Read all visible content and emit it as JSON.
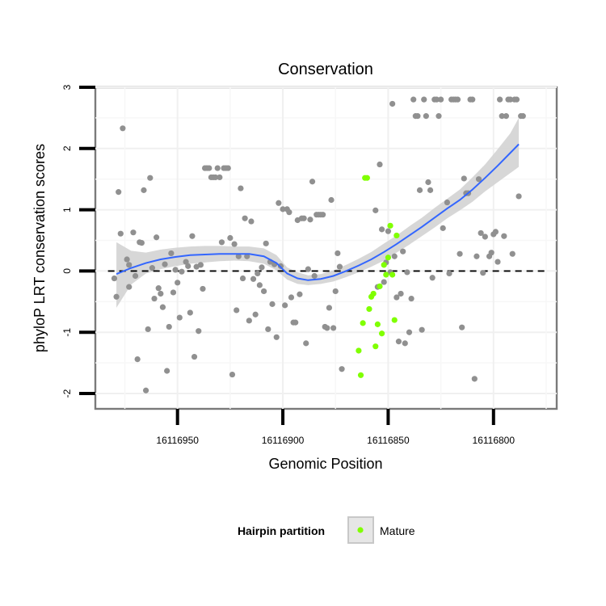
{
  "chart_data": {
    "type": "scatter",
    "title": "Conservation",
    "xlabel": "Genomic Position",
    "ylabel": "phyloP LRT conservation scores",
    "xlim": [
      16116989,
      16116770
    ],
    "ylim": [
      -2.25,
      3.0
    ],
    "x_reversed": true,
    "x_ticks": [
      16116950,
      16116900,
      16116850,
      16116800
    ],
    "x_tick_labels": [
      "16116950",
      "16116900",
      "16116850",
      "16116800"
    ],
    "y_ticks": [
      -2,
      -1,
      0,
      1,
      2,
      3
    ],
    "y_tick_labels": [
      "-2",
      "-1",
      "0",
      "1",
      "2",
      "3"
    ],
    "grid": true,
    "reference_line": {
      "y": 0,
      "style": "dashed",
      "color": "#000000"
    },
    "legend": {
      "title": "Hairpin partition",
      "position": "bottom",
      "entries": [
        {
          "label": "Mature",
          "color": "#80ff00"
        }
      ]
    },
    "series": [
      {
        "color": "#909090",
        "points": [
          [
            16116980,
            -0.12
          ],
          [
            16116979,
            -0.42
          ],
          [
            16116978,
            1.29
          ],
          [
            16116977,
            0.61
          ],
          [
            16116976,
            2.33
          ],
          [
            16116974,
            0.19
          ],
          [
            16116973,
            0.1
          ],
          [
            16116973,
            -0.26
          ],
          [
            16116971,
            0.63
          ],
          [
            16116970,
            -0.08
          ],
          [
            16116969,
            -1.44
          ],
          [
            16116968,
            0.47
          ],
          [
            16116967,
            0.46
          ],
          [
            16116966,
            1.32
          ],
          [
            16116965,
            -1.95
          ],
          [
            16116964,
            -0.95
          ],
          [
            16116963,
            1.52
          ],
          [
            16116962,
            0.05
          ],
          [
            16116961,
            -0.45
          ],
          [
            16116960,
            0.55
          ],
          [
            16116959,
            -0.28
          ],
          [
            16116958,
            -0.37
          ],
          [
            16116957,
            -0.59
          ],
          [
            16116956,
            0.11
          ],
          [
            16116955,
            -1.63
          ],
          [
            16116954,
            -0.91
          ],
          [
            16116953,
            0.29
          ],
          [
            16116952,
            -0.35
          ],
          [
            16116951,
            0.02
          ],
          [
            16116950,
            -0.19
          ],
          [
            16116949,
            -0.76
          ],
          [
            16116948,
            -0.01
          ],
          [
            16116946,
            0.15
          ],
          [
            16116945,
            0.08
          ],
          [
            16116944,
            -0.68
          ],
          [
            16116943,
            0.57
          ],
          [
            16116942,
            -1.4
          ],
          [
            16116941,
            0.07
          ],
          [
            16116940,
            -0.98
          ],
          [
            16116939,
            0.1
          ],
          [
            16116938,
            -0.29
          ],
          [
            16116937,
            1.68
          ],
          [
            16116936,
            1.68
          ],
          [
            16116935,
            1.68
          ],
          [
            16116934,
            1.53
          ],
          [
            16116933,
            1.53
          ],
          [
            16116932,
            1.53
          ],
          [
            16116931,
            1.68
          ],
          [
            16116930,
            1.53
          ],
          [
            16116929,
            0.47
          ],
          [
            16116928,
            1.68
          ],
          [
            16116927,
            1.68
          ],
          [
            16116926,
            1.68
          ],
          [
            16116925,
            0.54
          ],
          [
            16116924,
            -1.69
          ],
          [
            16116923,
            0.44
          ],
          [
            16116922,
            -0.64
          ],
          [
            16116921,
            0.24
          ],
          [
            16116920,
            1.35
          ],
          [
            16116919,
            -0.12
          ],
          [
            16116918,
            0.86
          ],
          [
            16116917,
            0.24
          ],
          [
            16116916,
            -0.81
          ],
          [
            16116915,
            0.81
          ],
          [
            16116914,
            -0.13
          ],
          [
            16116913,
            -0.71
          ],
          [
            16116912,
            -0.04
          ],
          [
            16116911,
            -0.23
          ],
          [
            16116910,
            0.06
          ],
          [
            16116909,
            -0.33
          ],
          [
            16116908,
            0.45
          ],
          [
            16116907,
            -0.95
          ],
          [
            16116906,
            0.15
          ],
          [
            16116905,
            -0.54
          ],
          [
            16116904,
            0.11
          ],
          [
            16116903,
            -1.08
          ],
          [
            16116902,
            1.11
          ],
          [
            16116901,
            0.08
          ],
          [
            16116900,
            1.01
          ],
          [
            16116899,
            -0.56
          ],
          [
            16116898,
            1.01
          ],
          [
            16116897,
            0.96
          ],
          [
            16116896,
            -0.43
          ],
          [
            16116895,
            -0.84
          ],
          [
            16116894,
            -0.84
          ],
          [
            16116893,
            0.83
          ],
          [
            16116892,
            -0.38
          ],
          [
            16116891,
            0.86
          ],
          [
            16116890,
            0.86
          ],
          [
            16116889,
            -1.18
          ],
          [
            16116888,
            0.03
          ],
          [
            16116887,
            0.84
          ],
          [
            16116886,
            1.46
          ],
          [
            16116885,
            -0.08
          ],
          [
            16116884,
            0.92
          ],
          [
            16116883,
            0.92
          ],
          [
            16116882,
            0.92
          ],
          [
            16116881,
            0.92
          ],
          [
            16116880,
            -0.91
          ],
          [
            16116879,
            -0.93
          ],
          [
            16116878,
            -0.6
          ],
          [
            16116877,
            1.16
          ],
          [
            16116876,
            -0.93
          ],
          [
            16116875,
            -0.33
          ],
          [
            16116874,
            0.29
          ],
          [
            16116873,
            0.07
          ],
          [
            16116872,
            -1.6
          ],
          [
            16116856,
            0.99
          ],
          [
            16116855,
            -0.26
          ],
          [
            16116854,
            1.74
          ],
          [
            16116853,
            0.68
          ],
          [
            16116852,
            -0.18
          ],
          [
            16116851,
            0.14
          ],
          [
            16116850,
            0.65
          ],
          [
            16116849,
            -0.02
          ],
          [
            16116848,
            2.73
          ],
          [
            16116847,
            0.24
          ],
          [
            16116846,
            -0.43
          ],
          [
            16116845,
            -1.15
          ],
          [
            16116844,
            -0.37
          ],
          [
            16116843,
            0.32
          ],
          [
            16116842,
            -1.18
          ],
          [
            16116841,
            -0.02
          ],
          [
            16116840,
            -1.0
          ],
          [
            16116839,
            -0.45
          ],
          [
            16116838,
            2.8
          ],
          [
            16116837,
            2.53
          ],
          [
            16116836,
            2.53
          ],
          [
            16116835,
            1.32
          ],
          [
            16116834,
            -0.96
          ],
          [
            16116833,
            2.8
          ],
          [
            16116832,
            2.53
          ],
          [
            16116831,
            1.45
          ],
          [
            16116830,
            1.32
          ],
          [
            16116829,
            -0.11
          ],
          [
            16116828,
            2.8
          ],
          [
            16116827,
            2.8
          ],
          [
            16116826,
            2.53
          ],
          [
            16116825,
            2.8
          ],
          [
            16116824,
            0.7
          ],
          [
            16116822,
            1.12
          ],
          [
            16116821,
            -0.04
          ],
          [
            16116820,
            2.8
          ],
          [
            16116819,
            2.8
          ],
          [
            16116818,
            2.8
          ],
          [
            16116817,
            2.8
          ],
          [
            16116816,
            0.28
          ],
          [
            16116815,
            -0.92
          ],
          [
            16116814,
            1.51
          ],
          [
            16116813,
            1.27
          ],
          [
            16116812,
            1.27
          ],
          [
            16116811,
            2.8
          ],
          [
            16116810,
            2.8
          ],
          [
            16116809,
            -1.76
          ],
          [
            16116808,
            0.24
          ],
          [
            16116807,
            1.5
          ],
          [
            16116806,
            0.62
          ],
          [
            16116805,
            -0.03
          ],
          [
            16116804,
            0.56
          ],
          [
            16116802,
            0.24
          ],
          [
            16116801,
            0.3
          ],
          [
            16116800,
            0.6
          ],
          [
            16116799,
            0.64
          ],
          [
            16116798,
            0.15
          ],
          [
            16116797,
            2.8
          ],
          [
            16116796,
            2.53
          ],
          [
            16116795,
            0.57
          ],
          [
            16116794,
            2.53
          ],
          [
            16116793,
            2.8
          ],
          [
            16116792,
            2.8
          ],
          [
            16116791,
            0.28
          ],
          [
            16116790,
            2.8
          ],
          [
            16116789,
            2.8
          ],
          [
            16116788,
            1.22
          ],
          [
            16116787,
            2.53
          ],
          [
            16116786,
            2.53
          ]
        ]
      },
      {
        "name": "Mature",
        "color": "#80ff00",
        "points": [
          [
            16116864,
            -1.3
          ],
          [
            16116863,
            -1.7
          ],
          [
            16116862,
            -0.85
          ],
          [
            16116861,
            1.52
          ],
          [
            16116860,
            1.52
          ],
          [
            16116859,
            -0.62
          ],
          [
            16116858,
            -0.42
          ],
          [
            16116857,
            -0.37
          ],
          [
            16116856,
            -1.23
          ],
          [
            16116855,
            -0.87
          ],
          [
            16116854,
            -0.25
          ],
          [
            16116853,
            -1.02
          ],
          [
            16116852,
            0.1
          ],
          [
            16116851,
            -0.06
          ],
          [
            16116850,
            0.22
          ],
          [
            16116849,
            0.74
          ],
          [
            16116848,
            -0.06
          ],
          [
            16116847,
            -0.8
          ],
          [
            16116846,
            0.58
          ]
        ]
      }
    ],
    "smooth": {
      "color": "#3366ff",
      "ribbon_color": "#d3d3d3",
      "x": [
        16116979,
        16116972,
        16116965,
        16116958,
        16116951,
        16116944,
        16116937,
        16116930,
        16116923,
        16116916,
        16116909,
        16116903,
        16116898,
        16116893,
        16116888,
        16116882,
        16116876,
        16116870,
        16116864,
        16116858,
        16116852,
        16116846,
        16116840,
        16116834,
        16116828,
        16116822,
        16116816,
        16116810,
        16116804,
        16116798,
        16116792,
        16116788
      ],
      "y": [
        -0.05,
        0.05,
        0.13,
        0.19,
        0.23,
        0.26,
        0.27,
        0.28,
        0.28,
        0.28,
        0.24,
        0.13,
        -0.04,
        -0.12,
        -0.15,
        -0.13,
        -0.08,
        0.0,
        0.09,
        0.19,
        0.31,
        0.44,
        0.58,
        0.72,
        0.87,
        1.02,
        1.16,
        1.33,
        1.52,
        1.72,
        1.93,
        2.07
      ],
      "lower": [
        -0.6,
        -0.22,
        -0.04,
        0.03,
        0.08,
        0.12,
        0.14,
        0.16,
        0.17,
        0.16,
        0.12,
        0.01,
        -0.14,
        -0.21,
        -0.23,
        -0.21,
        -0.17,
        -0.1,
        -0.02,
        0.07,
        0.17,
        0.3,
        0.43,
        0.57,
        0.71,
        0.86,
        0.99,
        1.13,
        1.3,
        1.45,
        1.6,
        1.7
      ],
      "upper": [
        0.47,
        0.33,
        0.3,
        0.35,
        0.38,
        0.4,
        0.41,
        0.41,
        0.4,
        0.4,
        0.37,
        0.26,
        0.06,
        -0.02,
        -0.07,
        -0.05,
        0.01,
        0.1,
        0.2,
        0.31,
        0.45,
        0.58,
        0.73,
        0.87,
        1.03,
        1.18,
        1.33,
        1.53,
        1.74,
        1.99,
        2.25,
        2.5
      ]
    }
  }
}
